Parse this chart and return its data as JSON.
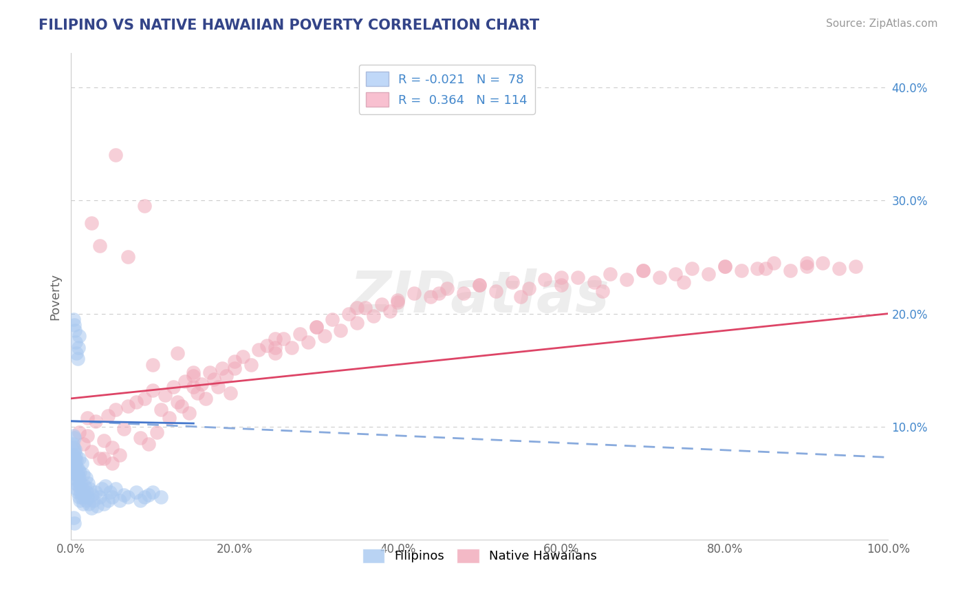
{
  "title": "FILIPINO VS NATIVE HAWAIIAN POVERTY CORRELATION CHART",
  "source": "Source: ZipAtlas.com",
  "ylabel": "Poverty",
  "xlim": [
    0,
    1.0
  ],
  "ylim": [
    0,
    0.43
  ],
  "xtick_labels": [
    "0.0%",
    "20.0%",
    "40.0%",
    "60.0%",
    "80.0%",
    "100.0%"
  ],
  "ytick_positions": [
    0.1,
    0.2,
    0.3,
    0.4
  ],
  "ytick_labels": [
    "10.0%",
    "20.0%",
    "30.0%",
    "40.0%"
  ],
  "filipinos_R": -0.021,
  "filipinos_N": 78,
  "hawaiians_R": 0.364,
  "hawaiians_N": 114,
  "blue_dot_color": "#a8c8f0",
  "pink_dot_color": "#f0a8b8",
  "blue_line_color": "#4477cc",
  "pink_line_color": "#dd4466",
  "blue_dash_color": "#88aadd",
  "legend_blue_face": "#c0d8f8",
  "legend_pink_face": "#f8c0d0",
  "watermark": "ZIPatlas",
  "background_color": "#ffffff",
  "grid_color": "#cccccc",
  "title_color": "#334488",
  "source_color": "#999999",
  "ytick_color": "#4488cc",
  "xtick_color": "#666666",
  "ylabel_color": "#666666",
  "filipinos_x": [
    0.002,
    0.002,
    0.003,
    0.003,
    0.003,
    0.004,
    0.004,
    0.004,
    0.004,
    0.005,
    0.005,
    0.005,
    0.005,
    0.005,
    0.006,
    0.006,
    0.006,
    0.007,
    0.007,
    0.007,
    0.008,
    0.008,
    0.008,
    0.009,
    0.009,
    0.01,
    0.01,
    0.01,
    0.011,
    0.011,
    0.012,
    0.012,
    0.013,
    0.013,
    0.014,
    0.015,
    0.015,
    0.016,
    0.017,
    0.018,
    0.018,
    0.019,
    0.02,
    0.021,
    0.022,
    0.023,
    0.025,
    0.026,
    0.028,
    0.03,
    0.032,
    0.035,
    0.038,
    0.04,
    0.042,
    0.045,
    0.048,
    0.05,
    0.055,
    0.06,
    0.065,
    0.07,
    0.08,
    0.085,
    0.09,
    0.095,
    0.1,
    0.11,
    0.003,
    0.004,
    0.005,
    0.006,
    0.007,
    0.008,
    0.009,
    0.01,
    0.003,
    0.004
  ],
  "filipinos_y": [
    0.085,
    0.075,
    0.092,
    0.07,
    0.082,
    0.065,
    0.078,
    0.06,
    0.09,
    0.055,
    0.072,
    0.068,
    0.08,
    0.062,
    0.058,
    0.075,
    0.05,
    0.065,
    0.045,
    0.07,
    0.052,
    0.042,
    0.058,
    0.048,
    0.062,
    0.038,
    0.055,
    0.072,
    0.035,
    0.06,
    0.042,
    0.05,
    0.038,
    0.068,
    0.045,
    0.032,
    0.058,
    0.04,
    0.048,
    0.035,
    0.055,
    0.042,
    0.038,
    0.05,
    0.032,
    0.045,
    0.028,
    0.04,
    0.035,
    0.042,
    0.03,
    0.038,
    0.045,
    0.032,
    0.048,
    0.035,
    0.042,
    0.038,
    0.045,
    0.035,
    0.04,
    0.038,
    0.042,
    0.035,
    0.038,
    0.04,
    0.042,
    0.038,
    0.195,
    0.19,
    0.185,
    0.175,
    0.165,
    0.16,
    0.17,
    0.18,
    0.02,
    0.015
  ],
  "hawaiians_x": [
    0.01,
    0.015,
    0.02,
    0.025,
    0.03,
    0.035,
    0.04,
    0.045,
    0.05,
    0.055,
    0.06,
    0.065,
    0.07,
    0.08,
    0.085,
    0.09,
    0.095,
    0.1,
    0.105,
    0.11,
    0.115,
    0.12,
    0.125,
    0.13,
    0.135,
    0.14,
    0.145,
    0.15,
    0.155,
    0.16,
    0.165,
    0.17,
    0.175,
    0.18,
    0.185,
    0.19,
    0.195,
    0.2,
    0.21,
    0.22,
    0.23,
    0.24,
    0.25,
    0.26,
    0.27,
    0.28,
    0.29,
    0.3,
    0.31,
    0.32,
    0.33,
    0.34,
    0.35,
    0.36,
    0.37,
    0.38,
    0.39,
    0.4,
    0.42,
    0.44,
    0.46,
    0.48,
    0.5,
    0.52,
    0.54,
    0.56,
    0.58,
    0.6,
    0.62,
    0.64,
    0.66,
    0.68,
    0.7,
    0.72,
    0.74,
    0.76,
    0.78,
    0.8,
    0.82,
    0.84,
    0.86,
    0.88,
    0.9,
    0.92,
    0.94,
    0.96,
    0.025,
    0.035,
    0.055,
    0.07,
    0.09,
    0.13,
    0.15,
    0.2,
    0.25,
    0.3,
    0.35,
    0.45,
    0.5,
    0.6,
    0.7,
    0.8,
    0.9,
    0.05,
    0.1,
    0.15,
    0.25,
    0.4,
    0.55,
    0.65,
    0.75,
    0.85,
    0.02,
    0.04
  ],
  "hawaiians_y": [
    0.095,
    0.085,
    0.092,
    0.078,
    0.105,
    0.072,
    0.088,
    0.11,
    0.082,
    0.115,
    0.075,
    0.098,
    0.118,
    0.122,
    0.09,
    0.125,
    0.085,
    0.132,
    0.095,
    0.115,
    0.128,
    0.108,
    0.135,
    0.122,
    0.118,
    0.14,
    0.112,
    0.145,
    0.13,
    0.138,
    0.125,
    0.148,
    0.142,
    0.135,
    0.152,
    0.145,
    0.13,
    0.158,
    0.162,
    0.155,
    0.168,
    0.172,
    0.165,
    0.178,
    0.17,
    0.182,
    0.175,
    0.188,
    0.18,
    0.195,
    0.185,
    0.2,
    0.192,
    0.205,
    0.198,
    0.208,
    0.202,
    0.212,
    0.218,
    0.215,
    0.222,
    0.218,
    0.225,
    0.22,
    0.228,
    0.222,
    0.23,
    0.225,
    0.232,
    0.228,
    0.235,
    0.23,
    0.238,
    0.232,
    0.235,
    0.24,
    0.235,
    0.242,
    0.238,
    0.24,
    0.245,
    0.238,
    0.242,
    0.245,
    0.24,
    0.242,
    0.28,
    0.26,
    0.34,
    0.25,
    0.295,
    0.165,
    0.148,
    0.152,
    0.17,
    0.188,
    0.205,
    0.218,
    0.225,
    0.232,
    0.238,
    0.242,
    0.245,
    0.068,
    0.155,
    0.135,
    0.178,
    0.21,
    0.215,
    0.22,
    0.228,
    0.24,
    0.108,
    0.072
  ]
}
